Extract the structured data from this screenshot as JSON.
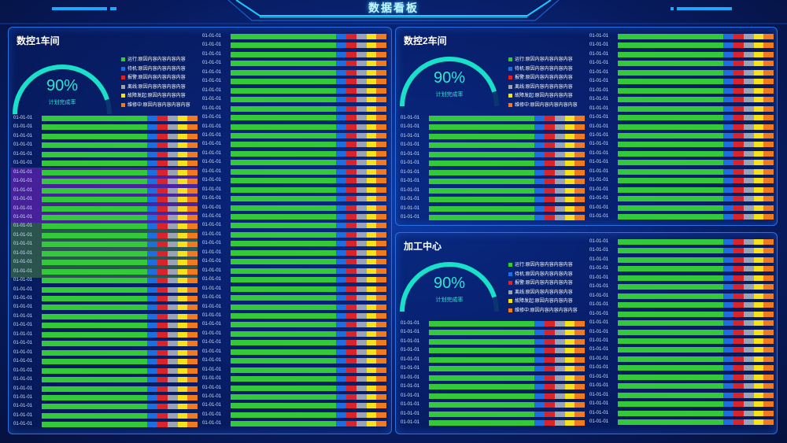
{
  "header": {
    "title": "数据看板"
  },
  "status_types": [
    {
      "key": "running",
      "color": "#34c93a"
    },
    {
      "key": "standby",
      "color": "#1f6ee0"
    },
    {
      "key": "alarm",
      "color": "#d9242a"
    },
    {
      "key": "offline",
      "color": "#9aa3b3"
    },
    {
      "key": "fault",
      "color": "#f6e21a"
    },
    {
      "key": "repair",
      "color": "#f07a1e"
    }
  ],
  "bar_label": "01-01-01",
  "panels": {
    "panel1": {
      "title": "数控1车间",
      "gauge": {
        "value": "90%",
        "label": "计划完成率",
        "percent": 90
      },
      "legend": [
        "运行:原因内容内容内容内容",
        "待机:原因内容内容内容内容",
        "报警:原因内容内容内容内容",
        "离线:原因内容内容内容内容",
        "故障发起:原因内容内容内容",
        "维修中:原因内容内容内容内容"
      ]
    },
    "panel2": {
      "title": "数控2车间",
      "gauge": {
        "value": "90%",
        "label": "计划完成率",
        "percent": 90
      },
      "legend": [
        "运行:原因内容内容内容内容",
        "待机:原因内容内容内容内容",
        "报警:原因内容内容内容内容",
        "离线:原因内容内容内容内容",
        "故障发起:原因内容内容内容",
        "维修中:原因内容内容内容内容"
      ]
    },
    "panel3": {
      "title": "加工中心",
      "gauge": {
        "value": "90%",
        "label": "计划完成率",
        "percent": 90
      },
      "legend": [
        "运行:原因内容内容内容内容",
        "待机:原因内容内容内容内容",
        "报警:原因内容内容内容内容",
        "离线:原因内容内容内容内容",
        "故障发起:原因内容内容内容",
        "维修中:原因内容内容内容内容"
      ]
    }
  }
}
